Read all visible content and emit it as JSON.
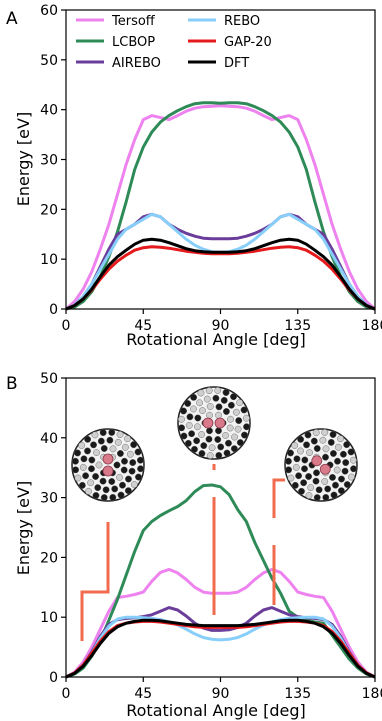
{
  "chart_data": [
    {
      "panel_label": "A",
      "type": "line",
      "xlabel": "Rotational Angle [deg]",
      "ylabel": "Energy [eV]",
      "xlim": [
        0,
        180
      ],
      "ylim": [
        0,
        60
      ],
      "xticks": [
        0,
        45,
        90,
        135,
        180
      ],
      "yticks": [
        0,
        10,
        20,
        30,
        40,
        50,
        60
      ],
      "legend_position": "top",
      "series": [
        {
          "name": "Tersoff",
          "color": "#ee82ee",
          "x": [
            0,
            5,
            10,
            15,
            20,
            25,
            30,
            35,
            40,
            45,
            50,
            55,
            60,
            65,
            70,
            75,
            80,
            85,
            90,
            95,
            100,
            105,
            110,
            115,
            120,
            125,
            130,
            135,
            140,
            145,
            150,
            155,
            160,
            165,
            170,
            175,
            180
          ],
          "y": [
            0,
            1.5,
            4,
            7.5,
            12,
            17,
            23,
            29,
            34,
            38,
            38.8,
            38.4,
            38,
            38.8,
            39.7,
            40.3,
            40.6,
            40.7,
            40.8,
            40.7,
            40.6,
            40.3,
            39.7,
            38.8,
            38,
            38.4,
            38.8,
            38,
            34,
            29,
            23,
            17,
            12,
            7.5,
            4,
            1.5,
            0
          ]
        },
        {
          "name": "LCBOP",
          "color": "#2e8b57",
          "x": [
            0,
            5,
            10,
            15,
            20,
            25,
            30,
            35,
            40,
            45,
            50,
            55,
            60,
            65,
            70,
            75,
            80,
            85,
            90,
            95,
            100,
            105,
            110,
            115,
            120,
            125,
            130,
            135,
            140,
            145,
            150,
            155,
            160,
            165,
            170,
            175,
            180
          ],
          "y": [
            0,
            0.4,
            1.5,
            3.5,
            6.5,
            10.5,
            15.5,
            21.5,
            28,
            32.5,
            35.5,
            37.5,
            38.8,
            39.8,
            40.6,
            41.2,
            41.4,
            41.4,
            41.3,
            41.4,
            41.4,
            41.2,
            40.6,
            39.8,
            38.8,
            37.5,
            35.5,
            32.5,
            28,
            21.5,
            15.5,
            10.5,
            6.5,
            3.5,
            1.5,
            0.4,
            0
          ]
        },
        {
          "name": "AIREBO",
          "color": "#6a3d9a",
          "x": [
            0,
            5,
            10,
            15,
            20,
            25,
            30,
            35,
            40,
            45,
            50,
            55,
            60,
            65,
            70,
            75,
            80,
            85,
            90,
            95,
            100,
            105,
            110,
            115,
            120,
            125,
            130,
            135,
            140,
            145,
            150,
            155,
            160,
            165,
            170,
            175,
            180
          ],
          "y": [
            0,
            0.8,
            2.5,
            5,
            8.5,
            12,
            15,
            16,
            17,
            18.5,
            19,
            18.5,
            17,
            16,
            15.2,
            14.6,
            14.2,
            14.1,
            14.1,
            14.1,
            14.2,
            14.6,
            15.2,
            16,
            17,
            18.5,
            19,
            18.5,
            17,
            16,
            15,
            12,
            8.5,
            5,
            2.5,
            0.8,
            0
          ]
        },
        {
          "name": "REBO",
          "color": "#87cefa",
          "x": [
            0,
            5,
            10,
            15,
            20,
            25,
            30,
            35,
            40,
            45,
            50,
            55,
            60,
            65,
            70,
            75,
            80,
            85,
            90,
            95,
            100,
            105,
            110,
            115,
            120,
            125,
            130,
            135,
            140,
            145,
            150,
            155,
            160,
            165,
            170,
            175,
            180
          ],
          "y": [
            0,
            0.8,
            2.5,
            5,
            8,
            11,
            14,
            16,
            17,
            18,
            19,
            18.5,
            17,
            15.5,
            14,
            12.8,
            12,
            11.5,
            11.4,
            11.5,
            12,
            12.8,
            14,
            15.5,
            17,
            18.5,
            19,
            18,
            17,
            16,
            14,
            11,
            8,
            5,
            2.5,
            0.8,
            0
          ]
        },
        {
          "name": "GAP-20",
          "color": "#e41a1c",
          "x": [
            0,
            5,
            10,
            15,
            20,
            25,
            30,
            35,
            40,
            45,
            50,
            55,
            60,
            65,
            70,
            75,
            80,
            85,
            90,
            95,
            100,
            105,
            110,
            115,
            120,
            125,
            130,
            135,
            140,
            145,
            150,
            155,
            160,
            165,
            170,
            175,
            180
          ],
          "y": [
            0,
            0.7,
            2,
            3.8,
            6,
            8,
            9.6,
            10.8,
            11.8,
            12.3,
            12.5,
            12.4,
            12.2,
            11.9,
            11.6,
            11.4,
            11.2,
            11.1,
            11.1,
            11.1,
            11.2,
            11.4,
            11.6,
            11.9,
            12.2,
            12.4,
            12.5,
            12.3,
            11.8,
            10.8,
            9.6,
            8,
            6,
            3.8,
            2,
            0.7,
            0
          ]
        },
        {
          "name": "DFT",
          "color": "#000000",
          "x": [
            0,
            5,
            10,
            15,
            20,
            25,
            30,
            35,
            40,
            45,
            50,
            55,
            60,
            65,
            70,
            75,
            80,
            85,
            90,
            95,
            100,
            105,
            110,
            115,
            120,
            125,
            130,
            135,
            140,
            145,
            150,
            155,
            160,
            165,
            170,
            175,
            180
          ],
          "y": [
            0,
            0.7,
            2,
            4,
            6.5,
            8.8,
            10.5,
            11.8,
            13,
            13.8,
            14,
            13.8,
            13.3,
            12.7,
            12.1,
            11.7,
            11.5,
            11.4,
            11.4,
            11.4,
            11.5,
            11.7,
            12.1,
            12.7,
            13.3,
            13.8,
            14,
            13.8,
            13,
            11.8,
            10.5,
            8.8,
            6.5,
            4,
            2,
            0.7,
            0
          ]
        }
      ]
    },
    {
      "panel_label": "B",
      "type": "line",
      "xlabel": "Rotational Angle [deg]",
      "ylabel": "Energy [eV]",
      "xlim": [
        0,
        180
      ],
      "ylim": [
        0,
        50
      ],
      "xticks": [
        0,
        45,
        90,
        135,
        180
      ],
      "yticks": [
        0,
        10,
        20,
        30,
        40,
        50
      ],
      "series": [
        {
          "name": "Tersoff",
          "color": "#ee82ee",
          "x": [
            0,
            5,
            10,
            15,
            20,
            25,
            30,
            35,
            40,
            45,
            50,
            55,
            60,
            65,
            70,
            75,
            80,
            85,
            90,
            95,
            100,
            105,
            110,
            115,
            120,
            125,
            130,
            135,
            140,
            145,
            150,
            155,
            160,
            165,
            170,
            175,
            180
          ],
          "y": [
            0,
            0.8,
            2.5,
            5,
            8,
            11,
            13.3,
            13.5,
            13.8,
            14.2,
            16,
            17.5,
            18,
            17.4,
            16.3,
            15,
            14.2,
            14,
            14,
            14,
            14.2,
            15,
            16.3,
            17.4,
            18,
            17.5,
            16,
            14.2,
            13.8,
            13.5,
            13.3,
            11,
            8,
            5,
            2.5,
            0.8,
            0
          ]
        },
        {
          "name": "LCBOP",
          "color": "#2e8b57",
          "x": [
            0,
            5,
            10,
            15,
            20,
            25,
            30,
            35,
            40,
            45,
            50,
            55,
            60,
            65,
            70,
            75,
            80,
            85,
            90,
            95,
            100,
            105,
            110,
            115,
            120,
            125,
            130,
            135,
            140,
            145,
            150,
            155,
            160,
            165,
            170,
            175,
            180
          ],
          "y": [
            0,
            0.5,
            1.5,
            3.5,
            6,
            9.5,
            13,
            17,
            21,
            24.5,
            26,
            27,
            27.8,
            28.5,
            29.5,
            31,
            32,
            32.1,
            31.8,
            30.5,
            28,
            26,
            22.5,
            19.5,
            16.5,
            14,
            11,
            10,
            9.5,
            9.2,
            9,
            7,
            5,
            3,
            1.5,
            0.5,
            0
          ]
        },
        {
          "name": "AIREBO",
          "color": "#6a3d9a",
          "x": [
            0,
            5,
            10,
            15,
            20,
            25,
            30,
            35,
            40,
            45,
            50,
            55,
            60,
            65,
            70,
            75,
            80,
            85,
            90,
            95,
            100,
            105,
            110,
            115,
            120,
            125,
            130,
            135,
            140,
            145,
            150,
            155,
            160,
            165,
            170,
            175,
            180
          ],
          "y": [
            0,
            0.7,
            2,
            4.2,
            6.8,
            8.8,
            9.6,
            9.8,
            9.9,
            10.1,
            10.4,
            11,
            11.6,
            11.2,
            10.2,
            9,
            8.2,
            7.8,
            7.8,
            7.9,
            8.3,
            9,
            10.2,
            11.2,
            11.6,
            11,
            10.4,
            10.1,
            9.9,
            9.8,
            9.6,
            8.8,
            6.8,
            4.2,
            2,
            0.7,
            0
          ]
        },
        {
          "name": "REBO",
          "color": "#87cefa",
          "x": [
            0,
            5,
            10,
            15,
            20,
            25,
            30,
            35,
            40,
            45,
            50,
            55,
            60,
            65,
            70,
            75,
            80,
            85,
            90,
            95,
            100,
            105,
            110,
            115,
            120,
            125,
            130,
            135,
            140,
            145,
            150,
            155,
            160,
            165,
            170,
            175,
            180
          ],
          "y": [
            0,
            0.7,
            2,
            4,
            6.5,
            8.5,
            9.7,
            10,
            10,
            9.9,
            9.8,
            9.6,
            9.2,
            8.7,
            8,
            7.2,
            6.6,
            6.3,
            6.2,
            6.3,
            6.6,
            7.2,
            8,
            8.7,
            9.2,
            9.6,
            9.8,
            9.9,
            10,
            10,
            9.7,
            8.5,
            6.5,
            4,
            2,
            0.7,
            0
          ]
        },
        {
          "name": "GAP-20",
          "color": "#e41a1c",
          "x": [
            0,
            5,
            10,
            15,
            20,
            25,
            30,
            35,
            40,
            45,
            50,
            55,
            60,
            65,
            70,
            75,
            80,
            85,
            90,
            95,
            100,
            105,
            110,
            115,
            120,
            125,
            130,
            135,
            140,
            145,
            150,
            155,
            160,
            165,
            170,
            175,
            180
          ],
          "y": [
            0,
            0.7,
            2,
            4,
            6,
            7.6,
            8.6,
            9,
            9.2,
            9.3,
            9.3,
            9.2,
            9,
            8.8,
            8.6,
            8.4,
            8.3,
            8.3,
            8.3,
            8.3,
            8.3,
            8.4,
            8.6,
            8.8,
            9,
            9.2,
            9.3,
            9.3,
            9.2,
            9,
            8.6,
            7.6,
            6,
            4,
            2,
            0.7,
            0
          ]
        },
        {
          "name": "DFT",
          "color": "#000000",
          "x": [
            0,
            5,
            10,
            15,
            20,
            25,
            30,
            35,
            40,
            45,
            50,
            55,
            60,
            65,
            70,
            75,
            80,
            85,
            90,
            95,
            100,
            105,
            110,
            115,
            120,
            125,
            130,
            135,
            140,
            145,
            150,
            155,
            160,
            165,
            170,
            175,
            180
          ],
          "y": [
            0,
            0.6,
            1.8,
            3.6,
            5.6,
            7.3,
            8.4,
            9,
            9.3,
            9.5,
            9.5,
            9.4,
            9.2,
            9,
            8.8,
            8.7,
            8.6,
            8.6,
            8.6,
            8.6,
            8.6,
            8.7,
            8.8,
            9,
            9.2,
            9.4,
            9.5,
            9.5,
            9.3,
            9,
            8.4,
            7.3,
            5.6,
            3.6,
            1.8,
            0.6,
            0
          ]
        }
      ]
    }
  ]
}
